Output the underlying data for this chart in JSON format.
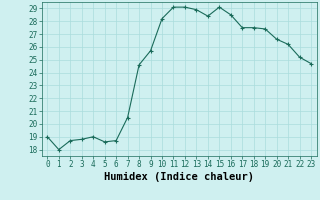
{
  "xlabel": "Humidex (Indice chaleur)",
  "x": [
    0,
    1,
    2,
    3,
    4,
    5,
    6,
    7,
    8,
    9,
    10,
    11,
    12,
    13,
    14,
    15,
    16,
    17,
    18,
    19,
    20,
    21,
    22,
    23
  ],
  "y": [
    19.0,
    18.0,
    18.7,
    18.8,
    19.0,
    18.6,
    18.7,
    20.5,
    24.6,
    25.7,
    28.2,
    29.1,
    29.1,
    28.9,
    28.4,
    29.1,
    28.5,
    27.5,
    27.5,
    27.4,
    26.6,
    26.2,
    25.2,
    24.7
  ],
  "line_color": "#1a6b5a",
  "marker": "+",
  "marker_size": 3,
  "marker_linewidth": 0.8,
  "line_width": 0.8,
  "background_color": "#cff0f0",
  "grid_color": "#aadddd",
  "ylim": [
    17.5,
    29.5
  ],
  "xlim": [
    -0.5,
    23.5
  ],
  "yticks": [
    18,
    19,
    20,
    21,
    22,
    23,
    24,
    25,
    26,
    27,
    28,
    29
  ],
  "xticks": [
    0,
    1,
    2,
    3,
    4,
    5,
    6,
    7,
    8,
    9,
    10,
    11,
    12,
    13,
    14,
    15,
    16,
    17,
    18,
    19,
    20,
    21,
    22,
    23
  ],
  "tick_fontsize": 5.5,
  "xlabel_fontsize": 7.5,
  "xlabel_fontweight": "bold"
}
